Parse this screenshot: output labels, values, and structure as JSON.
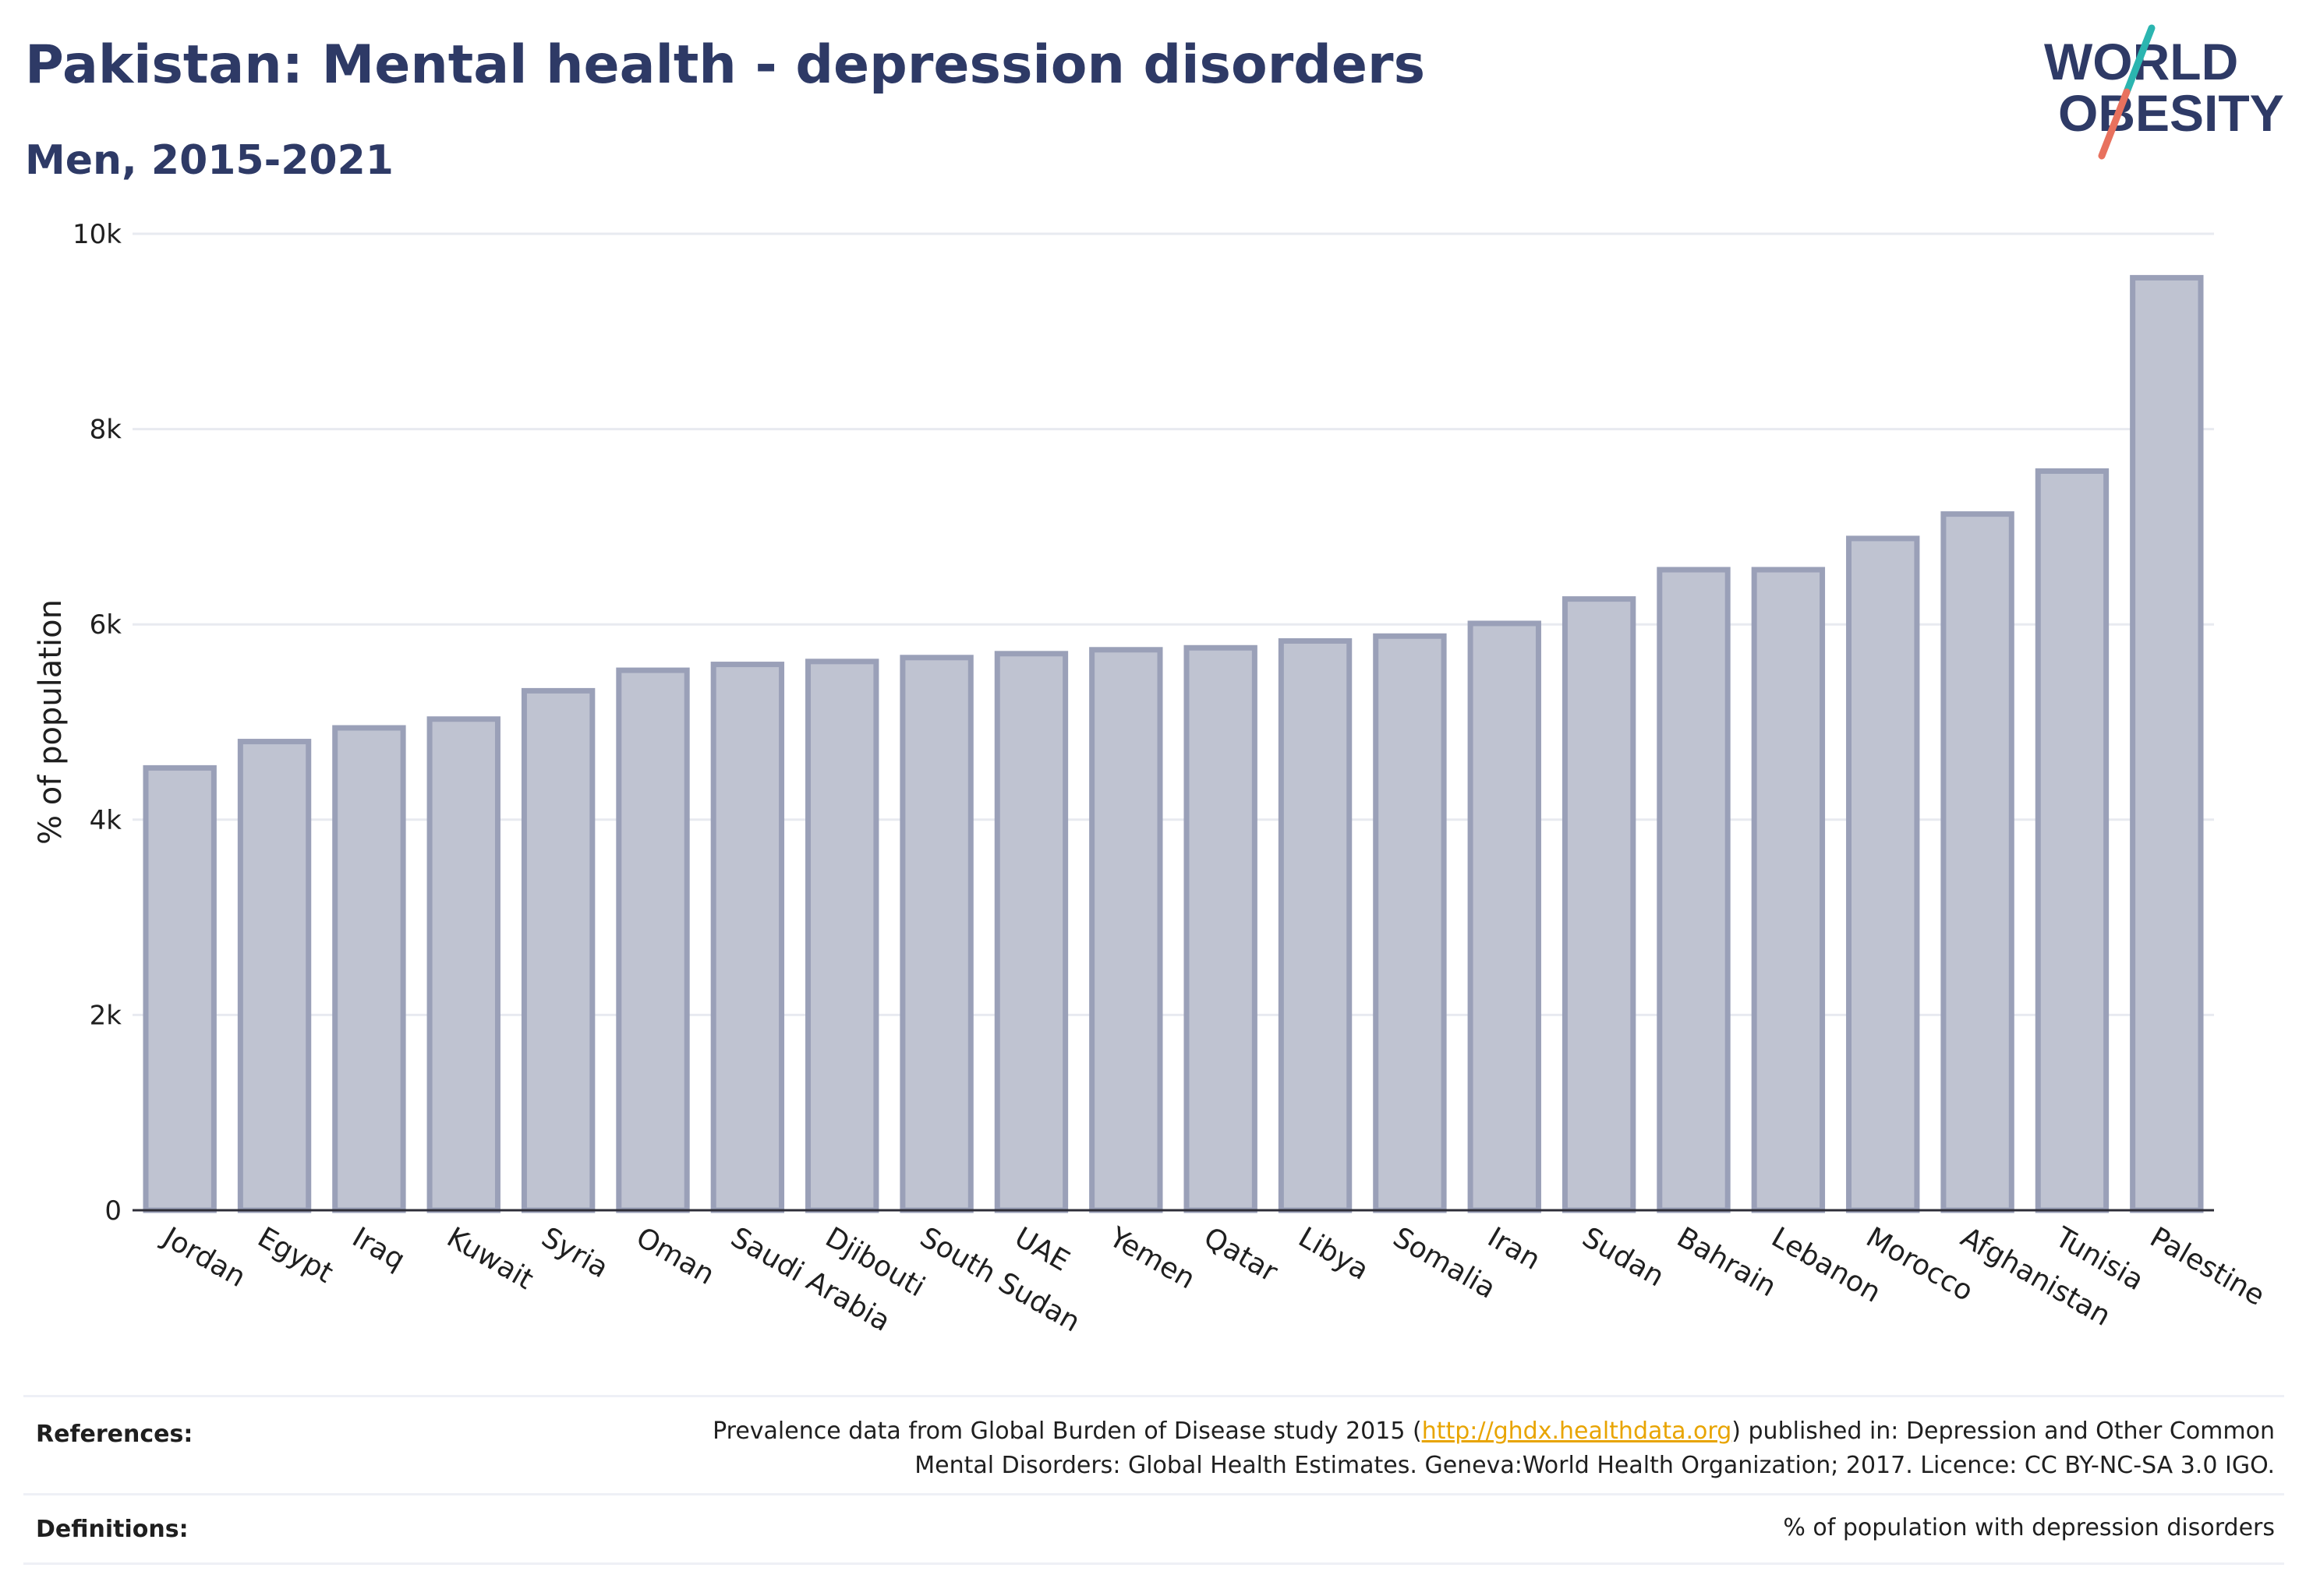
{
  "header": {
    "title": "Pakistan: Mental health - depression disorders",
    "subtitle": "Men, 2015-2021"
  },
  "logo": {
    "line1": "WORLD",
    "line2": "OBESITY",
    "accent_teal": "#2bb5b0",
    "accent_coral": "#e8715e",
    "text_color": "#2e3a66"
  },
  "chart_data": {
    "type": "bar",
    "ylabel": "% of population",
    "xlabel": "",
    "ylim": [
      0,
      10000
    ],
    "yticks": [
      0,
      2000,
      4000,
      6000,
      8000,
      10000
    ],
    "ytick_labels": [
      "0",
      "2k",
      "4k",
      "6k",
      "8k",
      "10k"
    ],
    "grid": true,
    "bar_color": "#bfc3d1",
    "bar_border_color": "#9aa0b8",
    "categories": [
      "Jordan",
      "Egypt",
      "Iraq",
      "Kuwait",
      "Syria",
      "Oman",
      "Saudi Arabia",
      "Djibouti",
      "South Sudan",
      "UAE",
      "Yemen",
      "Qatar",
      "Libya",
      "Somalia",
      "Iran",
      "Sudan",
      "Bahrain",
      "Lebanon",
      "Morocco",
      "Afghanistan",
      "Tunisia",
      "Palestine"
    ],
    "values": [
      4530,
      4800,
      4940,
      5030,
      5320,
      5530,
      5590,
      5620,
      5660,
      5700,
      5740,
      5760,
      5830,
      5880,
      6010,
      6260,
      6560,
      6560,
      6880,
      7130,
      7570,
      9550
    ]
  },
  "footer": {
    "references_label": "References:",
    "references_text_pre": "Prevalence data from Global Burden of Disease study 2015 (",
    "references_link": "http://ghdx.healthdata.org",
    "references_text_post": ") published in: Depression and Other Common",
    "references_line2": "Mental Disorders: Global Health Estimates. Geneva:World Health Organization; 2017. Licence: CC BY-NC-SA 3.0 IGO.",
    "definitions_label": "Definitions:",
    "definitions_text": "% of population with depression disorders"
  }
}
